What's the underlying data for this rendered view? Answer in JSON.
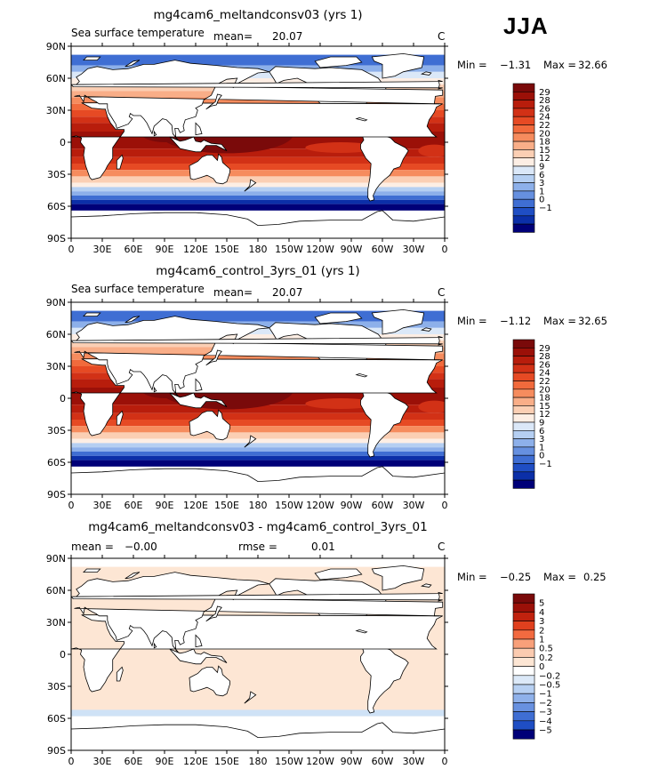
{
  "season": "JJA",
  "panels": [
    {
      "title": "mg4cam6_meltandconsv03 (yrs 1)",
      "var_label": "Sea surface temperature",
      "mean_label": "mean=",
      "mean_value": "20.07",
      "units": "C",
      "min_label": "Min =",
      "min_value": "−1.31",
      "max_label": "Max =",
      "max_value": "32.66",
      "colorbar": {
        "levels": [
          "29",
          "28",
          "26",
          "24",
          "22",
          "20",
          "18",
          "15",
          "12",
          "9",
          "6",
          "3",
          "1",
          "0",
          "−1"
        ],
        "colors": [
          "#7a0a0a",
          "#9b1008",
          "#b81d0c",
          "#d23116",
          "#e64a24",
          "#f16a3c",
          "#f68c5e",
          "#f9ae88",
          "#fbcfb4",
          "#fdeee4",
          "#dbe8f8",
          "#b5cff2",
          "#8db0ea",
          "#6690e0",
          "#3f6ed3",
          "#1f4ec4",
          "#0b2fa8",
          "#000078"
        ]
      }
    },
    {
      "title": "mg4cam6_control_3yrs_01 (yrs 1)",
      "var_label": "Sea surface temperature",
      "mean_label": "mean=",
      "mean_value": "20.07",
      "units": "C",
      "min_label": "Min =",
      "min_value": "−1.12",
      "max_label": "Max =",
      "max_value": "32.65",
      "colorbar": {
        "levels": [
          "29",
          "28",
          "26",
          "24",
          "22",
          "20",
          "18",
          "15",
          "12",
          "9",
          "6",
          "3",
          "1",
          "0",
          "−1"
        ],
        "colors": [
          "#7a0a0a",
          "#9b1008",
          "#b81d0c",
          "#d23116",
          "#e64a24",
          "#f16a3c",
          "#f68c5e",
          "#f9ae88",
          "#fbcfb4",
          "#fdeee4",
          "#dbe8f8",
          "#b5cff2",
          "#8db0ea",
          "#6690e0",
          "#3f6ed3",
          "#1f4ec4",
          "#0b2fa8",
          "#000078"
        ]
      }
    },
    {
      "title": "mg4cam6_meltandconsv03 - mg4cam6_control_3yrs_01",
      "mean_label": "mean =",
      "mean_value": "−0.00",
      "rmse_label": "rmse =",
      "rmse_value": "0.01",
      "units": "C",
      "min_label": "Min =",
      "min_value": "−0.25",
      "max_label": "Max =",
      "max_value": "0.25",
      "colorbar": {
        "levels": [
          "5",
          "4",
          "3",
          "2",
          "1",
          "0.5",
          "0.2",
          "0",
          "−0.2",
          "−0.5",
          "−1",
          "−2",
          "−3",
          "−4",
          "−5"
        ],
        "colors": [
          "#7a0a0a",
          "#9b1008",
          "#c0220e",
          "#e0401e",
          "#f26a40",
          "#f8a07a",
          "#fbcbb0",
          "#fde6d4",
          "#ffffff",
          "#dce9f8",
          "#b7d0f2",
          "#8fb1ea",
          "#6891e0",
          "#3f6ed3",
          "#1f4ec4",
          "#000078"
        ]
      }
    }
  ],
  "axes": {
    "lat_ticks": [
      "90N",
      "60N",
      "30N",
      "0",
      "30S",
      "60S",
      "90S"
    ],
    "lon_ticks": [
      "0",
      "30E",
      "60E",
      "90E",
      "120E",
      "150E",
      "180",
      "150W",
      "120W",
      "90W",
      "60W",
      "30W",
      "0"
    ]
  },
  "colors": {
    "warm_max": "#7a0a0a",
    "cold_min": "#000078",
    "land": "#ffffff",
    "diff_fill": "#fde6d4",
    "diff_edge": "#cfe2f6"
  }
}
